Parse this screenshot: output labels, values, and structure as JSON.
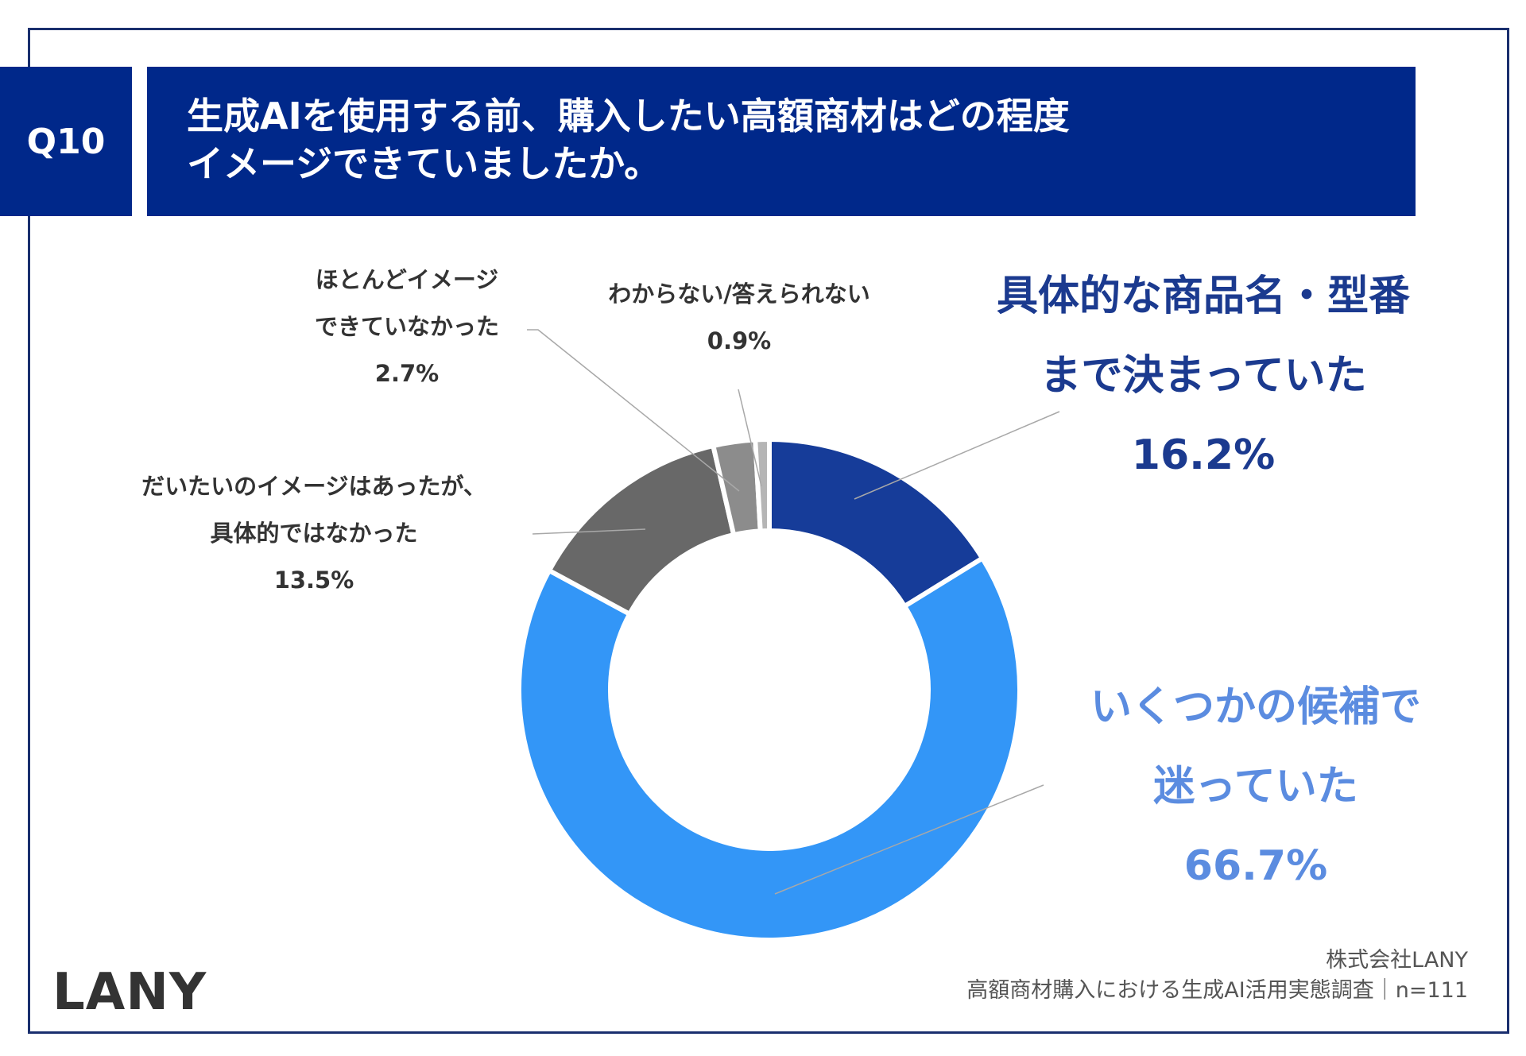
{
  "question": {
    "number": "Q10",
    "title_line1": "生成AIを使用する前、購入したい高額商材はどの程度",
    "title_line2": "イメージできていましたか。"
  },
  "chart_data": {
    "type": "pie",
    "donut": true,
    "categories": [
      "具体的な商品名・型番まで決まっていた",
      "いくつかの候補で迷っていた",
      "だいたいのイメージはあったが、具体的ではなかった",
      "ほとんどイメージできていなかった",
      "わからない/答えられない"
    ],
    "values": [
      16.2,
      66.7,
      13.5,
      2.7,
      0.9
    ],
    "value_labels": [
      "16.2%",
      "66.7%",
      "13.5%",
      "2.7%",
      "0.9%"
    ],
    "colors": [
      "#163c99",
      "#3396f7",
      "#686868",
      "#8c8c8c",
      "#b5b5b5"
    ]
  },
  "labels": {
    "specific": {
      "line1": "具体的な商品名・型番",
      "line2": "まで決まっていた",
      "pct": "16.2%"
    },
    "candidates": {
      "line1": "いくつかの候補で",
      "line2": "迷っていた",
      "pct": "66.7%"
    },
    "rough": {
      "line1": "だいたいのイメージはあったが、",
      "line2": "具体的ではなかった",
      "pct": "13.5%"
    },
    "hardly": {
      "line1": "ほとんどイメージ",
      "line2": "できていなかった",
      "pct": "2.7%"
    },
    "unknown": {
      "line1": "わからない/答えられない",
      "pct": "0.9%"
    }
  },
  "footer": {
    "logo": "LANY",
    "company": "株式会社LANY",
    "survey": "高額商材購入における生成AI活用実態調査｜n=111"
  }
}
